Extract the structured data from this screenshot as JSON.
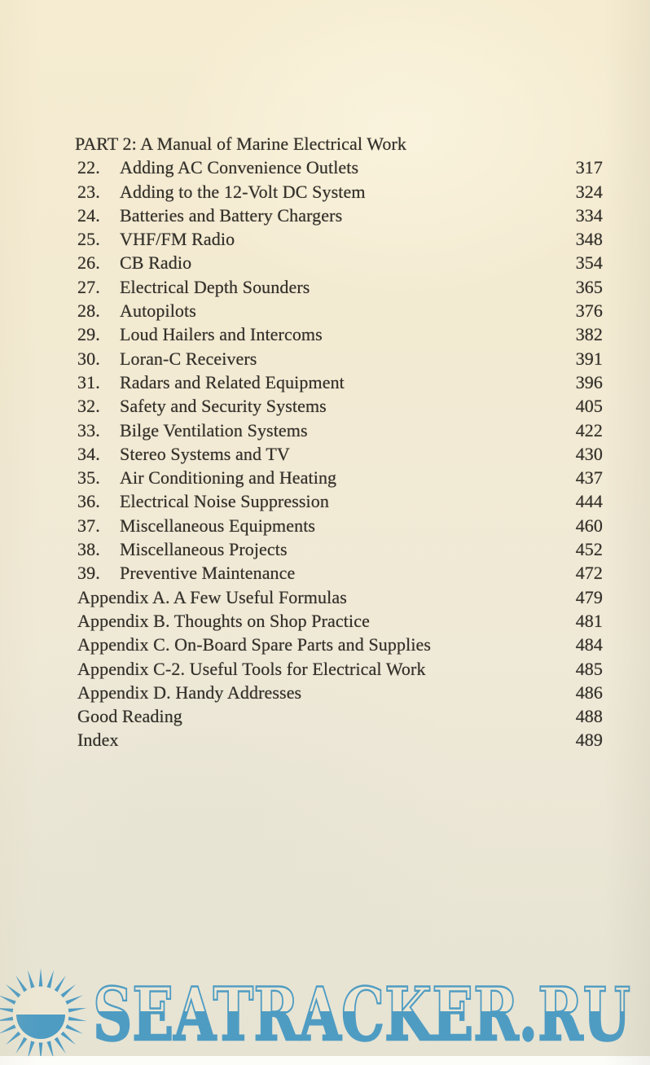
{
  "document": {
    "heading": "PART 2: A Manual of Marine Electrical Work",
    "entries": [
      {
        "num": "22.",
        "title": "Adding AC Convenience Outlets",
        "page": "317"
      },
      {
        "num": "23.",
        "title": "Adding to the 12-Volt DC System",
        "page": "324"
      },
      {
        "num": "24.",
        "title": "Batteries and Battery Chargers",
        "page": "334"
      },
      {
        "num": "25.",
        "title": "VHF/FM Radio",
        "page": "348"
      },
      {
        "num": "26.",
        "title": "CB Radio",
        "page": "354"
      },
      {
        "num": "27.",
        "title": "Electrical Depth Sounders",
        "page": "365"
      },
      {
        "num": "28.",
        "title": "Autopilots",
        "page": "376"
      },
      {
        "num": "29.",
        "title": "Loud Hailers and Intercoms",
        "page": "382"
      },
      {
        "num": "30.",
        "title": "Loran-C Receivers",
        "page": "391"
      },
      {
        "num": "31.",
        "title": "Radars and Related Equipment",
        "page": "396"
      },
      {
        "num": "32.",
        "title": "Safety and Security Systems",
        "page": "405"
      },
      {
        "num": "33.",
        "title": "Bilge Ventilation Systems",
        "page": "422"
      },
      {
        "num": "34.",
        "title": "Stereo Systems and TV",
        "page": "430"
      },
      {
        "num": "35.",
        "title": "Air Conditioning and Heating",
        "page": "437"
      },
      {
        "num": "36.",
        "title": "Electrical Noise Suppression",
        "page": "444"
      },
      {
        "num": "37.",
        "title": "Miscellaneous Equipments",
        "page": "460"
      },
      {
        "num": "38.",
        "title": "Miscellaneous Projects",
        "page": "452"
      },
      {
        "num": "39.",
        "title": "Preventive Maintenance",
        "page": "472"
      },
      {
        "num": "",
        "title": "Appendix A. A Few Useful Formulas",
        "page": "479"
      },
      {
        "num": "",
        "title": "Appendix B. Thoughts on Shop Practice",
        "page": "481"
      },
      {
        "num": "",
        "title": "Appendix C. On-Board Spare Parts and Supplies",
        "page": "484"
      },
      {
        "num": "",
        "title": "Appendix C-2. Useful Tools for Electrical Work",
        "page": "485"
      },
      {
        "num": "",
        "title": "Appendix D. Handy Addresses",
        "page": "486"
      },
      {
        "num": "",
        "title": "Good Reading",
        "page": "488"
      },
      {
        "num": "",
        "title": "Index",
        "page": "489"
      }
    ]
  },
  "watermark": {
    "text": "SEATRACKER.RU",
    "logo": "sun-icon",
    "color": "#4f9cc3"
  },
  "colors": {
    "paper_top": "#f5ecd1",
    "paper_bottom": "#e6e3d3",
    "ink": "#33302a",
    "watermark_blue": "#4f9cc3",
    "sun_core_cream": "#ece7d4"
  }
}
